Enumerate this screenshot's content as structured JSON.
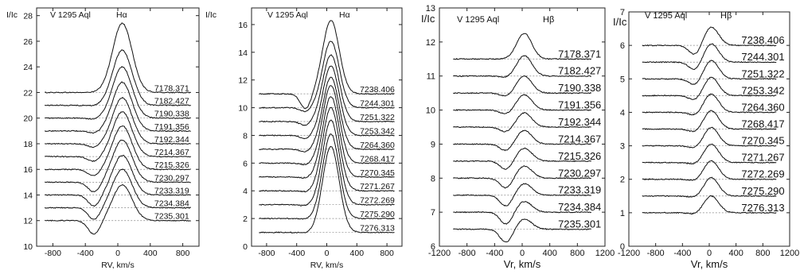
{
  "chart_data": [
    {
      "type": "line",
      "star": "V 1295 Aql",
      "line": "Hα",
      "ylabel": "I/Ic",
      "xlabel": "RV, km/s",
      "xlim": [
        -1000,
        1000
      ],
      "ylim": [
        10,
        28.6
      ],
      "xticks": [
        -800,
        -400,
        0,
        400,
        800
      ],
      "xtick_labels": [
        "-800",
        "-400",
        "0",
        "400",
        "800"
      ],
      "yticks": [
        10,
        12,
        14,
        16,
        18,
        20,
        22,
        24,
        26,
        28
      ],
      "ytick_labels": [
        "10",
        "12",
        "14",
        "16",
        "18",
        "20",
        "22",
        "24",
        "26",
        "28"
      ],
      "x_range": [
        -900,
        900
      ],
      "label_x": 450,
      "profile": {
        "abs_v": -290,
        "abs_w": 75,
        "em_v": 55,
        "em_w": 120
      },
      "series": [
        {
          "name": "7178.371",
          "baseline": 22.0,
          "peak": 5.4,
          "abs": 0.0
        },
        {
          "name": "7182.427",
          "baseline": 21.0,
          "peak": 4.3,
          "abs": 0.05
        },
        {
          "name": "7190.338",
          "baseline": 20.0,
          "peak": 4.0,
          "abs": 0.1
        },
        {
          "name": "7191.356",
          "baseline": 19.0,
          "peak": 3.8,
          "abs": 0.2
        },
        {
          "name": "7192.344",
          "baseline": 18.0,
          "peak": 3.6,
          "abs": 0.3
        },
        {
          "name": "7214.367",
          "baseline": 17.0,
          "peak": 3.5,
          "abs": 0.4
        },
        {
          "name": "7215.326",
          "baseline": 16.0,
          "peak": 3.4,
          "abs": 0.55
        },
        {
          "name": "7230.297",
          "baseline": 15.0,
          "peak": 3.3,
          "abs": 0.8
        },
        {
          "name": "7233.319",
          "baseline": 14.0,
          "peak": 3.1,
          "abs": 0.9
        },
        {
          "name": "7234.384",
          "baseline": 13.0,
          "peak": 3.0,
          "abs": 0.95
        },
        {
          "name": "7235.301",
          "baseline": 12.0,
          "peak": 2.8,
          "abs": 1.1
        }
      ]
    },
    {
      "type": "line",
      "star": "V 1295 Aql",
      "line": "Hα",
      "ylabel": "I/Ic",
      "xlabel": "RV, km/s",
      "xlim": [
        -1000,
        1000
      ],
      "ylim": [
        0,
        17.2
      ],
      "xticks": [
        -800,
        -400,
        0,
        400,
        800
      ],
      "xtick_labels": [
        "-800",
        "-400",
        "0",
        "400",
        "800"
      ],
      "yticks": [
        0,
        2,
        4,
        6,
        8,
        10,
        12,
        14,
        16
      ],
      "ytick_labels": [
        "0",
        "2",
        "4",
        "6",
        "8",
        "10",
        "12",
        "14",
        "16"
      ],
      "x_range": [
        -900,
        900
      ],
      "label_x": 440,
      "profile": {
        "abs_v": -280,
        "abs_w": 70,
        "em_v": 55,
        "em_w": 110
      },
      "series": [
        {
          "name": "7238.406",
          "baseline": 11.0,
          "peak": 5.3,
          "abs": 1.1
        },
        {
          "name": "7244.301",
          "baseline": 10.0,
          "peak": 4.8,
          "abs": 0.3
        },
        {
          "name": "7251.322",
          "baseline": 9.0,
          "peak": 4.8,
          "abs": 0.3
        },
        {
          "name": "7253.342",
          "baseline": 8.0,
          "peak": 5.0,
          "abs": 0.25
        },
        {
          "name": "7264.360",
          "baseline": 7.0,
          "peak": 5.2,
          "abs": 0.2
        },
        {
          "name": "7268.417",
          "baseline": 6.0,
          "peak": 5.6,
          "abs": 0.15
        },
        {
          "name": "7270.345",
          "baseline": 5.0,
          "peak": 5.8,
          "abs": 0.1
        },
        {
          "name": "7271.267",
          "baseline": 4.0,
          "peak": 6.0,
          "abs": 0.1
        },
        {
          "name": "7272.269",
          "baseline": 3.0,
          "peak": 6.1,
          "abs": 0.1
        },
        {
          "name": "7275.290",
          "baseline": 2.0,
          "peak": 6.1,
          "abs": 0.05
        },
        {
          "name": "7276.313",
          "baseline": 1.0,
          "peak": 6.2,
          "abs": 0.05
        }
      ]
    },
    {
      "type": "line",
      "star": "V 1295 Aql",
      "line": "Hβ",
      "ylabel": "I/Ic",
      "xlabel": "Vr, km/s",
      "xlim": [
        -1200,
        1200
      ],
      "ylim": [
        6,
        13
      ],
      "xticks": [
        -1200,
        -800,
        -400,
        0,
        400,
        800,
        1200
      ],
      "xtick_labels": [
        "-1200",
        "-800",
        "-400",
        "0",
        "400",
        "800",
        "1200"
      ],
      "yticks": [
        6,
        7,
        8,
        9,
        10,
        11,
        12,
        13
      ],
      "ytick_labels": [
        "6",
        "7",
        "8",
        "9",
        "10",
        "11",
        "12",
        "13"
      ],
      "x_range": [
        -1000,
        1000
      ],
      "label_x": 520,
      "profile": {
        "abs_v": -230,
        "abs_w": 90,
        "em_v": 30,
        "em_w": 110
      },
      "series": [
        {
          "name": "7178.371",
          "baseline": 11.5,
          "peak": 0.75,
          "abs": 0.0
        },
        {
          "name": "7182.427",
          "baseline": 11.0,
          "peak": 0.6,
          "abs": 0.05
        },
        {
          "name": "7190.338",
          "baseline": 10.5,
          "peak": 0.5,
          "abs": 0.1
        },
        {
          "name": "7191.356",
          "baseline": 10.0,
          "peak": 0.45,
          "abs": 0.12
        },
        {
          "name": "7192.344",
          "baseline": 9.5,
          "peak": 0.42,
          "abs": 0.15
        },
        {
          "name": "7214.367",
          "baseline": 9.0,
          "peak": 0.4,
          "abs": 0.2
        },
        {
          "name": "7215.326",
          "baseline": 8.5,
          "peak": 0.38,
          "abs": 0.25
        },
        {
          "name": "7230.297",
          "baseline": 8.0,
          "peak": 0.36,
          "abs": 0.3
        },
        {
          "name": "7233.319",
          "baseline": 7.5,
          "peak": 0.34,
          "abs": 0.33
        },
        {
          "name": "7234.384",
          "baseline": 7.0,
          "peak": 0.32,
          "abs": 0.36
        },
        {
          "name": "7235.301",
          "baseline": 6.5,
          "peak": 0.3,
          "abs": 0.4
        }
      ]
    },
    {
      "type": "line",
      "star": "V 1295 Aql",
      "line": "Hβ",
      "ylabel": "I/Ic",
      "xlabel": "Vr, km/s",
      "xlim": [
        -1200,
        1200
      ],
      "ylim": [
        0,
        7
      ],
      "xticks": [
        -1200,
        -800,
        -400,
        0,
        400,
        800,
        1200
      ],
      "xtick_labels": [
        "-1200",
        "-800",
        "-400",
        "0",
        "400",
        "800",
        "1200"
      ],
      "yticks": [
        0,
        1,
        2,
        3,
        4,
        5,
        6,
        7
      ],
      "ytick_labels": [
        "0",
        "1",
        "2",
        "3",
        "4",
        "5",
        "6",
        "7"
      ],
      "x_range": [
        -1000,
        1000
      ],
      "label_x": 480,
      "profile": {
        "abs_v": -210,
        "abs_w": 90,
        "em_v": 30,
        "em_w": 110
      },
      "series": [
        {
          "name": "7238.406",
          "baseline": 6.0,
          "peak": 0.55,
          "abs": 0.3
        },
        {
          "name": "7244.301",
          "baseline": 5.5,
          "peak": 0.55,
          "abs": 0.25
        },
        {
          "name": "7251.322",
          "baseline": 5.0,
          "peak": 0.55,
          "abs": 0.2
        },
        {
          "name": "7253.342",
          "baseline": 4.5,
          "peak": 0.55,
          "abs": 0.15
        },
        {
          "name": "7264.360",
          "baseline": 4.0,
          "peak": 0.55,
          "abs": 0.1
        },
        {
          "name": "7268.417",
          "baseline": 3.5,
          "peak": 0.55,
          "abs": 0.1
        },
        {
          "name": "7270.345",
          "baseline": 3.0,
          "peak": 0.55,
          "abs": 0.08
        },
        {
          "name": "7271.267",
          "baseline": 2.5,
          "peak": 0.55,
          "abs": 0.06
        },
        {
          "name": "7272.269",
          "baseline": 2.0,
          "peak": 0.55,
          "abs": 0.05
        },
        {
          "name": "7275.290",
          "baseline": 1.5,
          "peak": 0.55,
          "abs": 0.05
        },
        {
          "name": "7276.313",
          "baseline": 1.0,
          "peak": 0.5,
          "abs": 0.05
        }
      ]
    }
  ]
}
